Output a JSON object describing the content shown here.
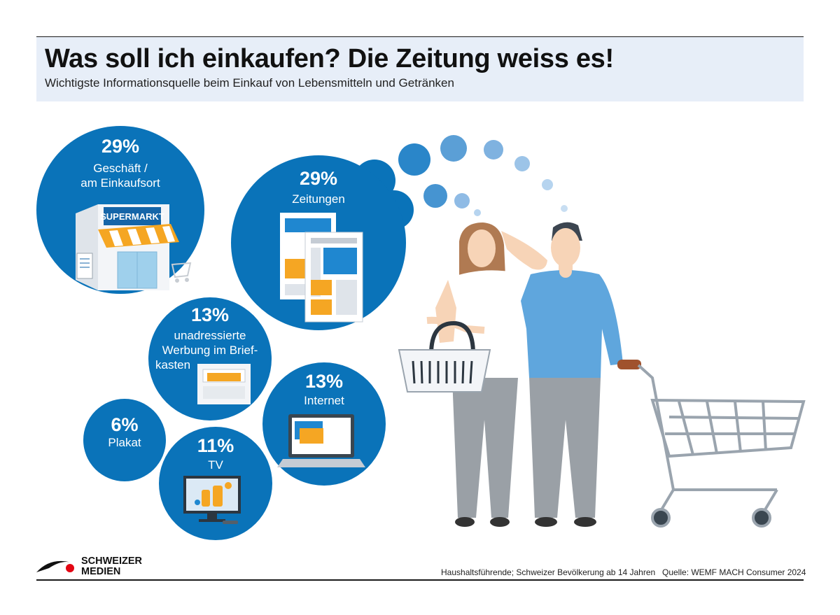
{
  "header": {
    "title": "Was soll ich einkaufen? Die Zeitung weiss es!",
    "subtitle": "Wichtigste Informationsquelle beim Einkauf von Lebensmitteln und Getränken"
  },
  "chart_data": {
    "type": "bubble",
    "title": "Was soll ich einkaufen? Die Zeitung weiss es!",
    "subtitle": "Wichtigste Informationsquelle beim Einkauf von Lebensmitteln und Getränken",
    "unit": "%",
    "categories": [
      "Geschäft / am Einkaufsort",
      "Zeitungen",
      "unadressierte Werbung im Briefkasten",
      "Internet",
      "Plakat",
      "TV"
    ],
    "values": [
      29,
      29,
      13,
      13,
      6,
      11
    ],
    "bubbles": [
      {
        "pct": "29%",
        "label_lines": [
          "Geschäft /",
          "am Einkaufsort"
        ],
        "icon": "supermarket-icon"
      },
      {
        "pct": "29%",
        "label_lines": [
          "Zeitungen"
        ],
        "icon": "newspaper-icon"
      },
      {
        "pct": "13%",
        "label_lines": [
          "unadressierte",
          "Werbung im Brief-",
          "kasten"
        ],
        "icon": "mailbox-icon"
      },
      {
        "pct": "13%",
        "label_lines": [
          "Internet"
        ],
        "icon": "laptop-icon"
      },
      {
        "pct": "6%",
        "label_lines": [
          "Plakat"
        ],
        "icon": ""
      },
      {
        "pct": "11%",
        "label_lines": [
          "TV"
        ],
        "icon": "tv-icon"
      }
    ],
    "shop_sign": "SUPERMARKT"
  },
  "colors": {
    "bubble_blue": "#0a73b9",
    "header_bg": "#e7eef8",
    "accent_orange": "#f5a623",
    "logo_red": "#e30613"
  },
  "footer": {
    "logo_line1": "SCHWEIZER",
    "logo_line2": "MEDIEN",
    "note": "Haushaltsführende; Schweizer Bevölkerung ab 14 Jahren",
    "source": "Quelle: WEMF MACH Consumer 2024"
  }
}
